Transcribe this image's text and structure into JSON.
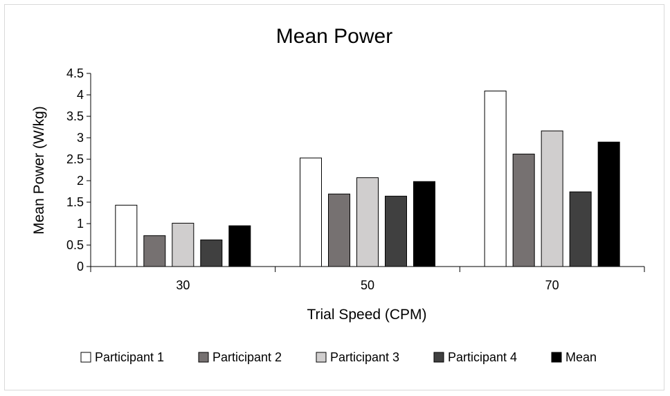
{
  "chart_data": {
    "type": "bar",
    "title": "Mean Power",
    "xlabel": "Trial Speed (CPM)",
    "ylabel": "Mean Power (W/kg)",
    "categories": [
      "30",
      "50",
      "70"
    ],
    "ylim": [
      0,
      4.5
    ],
    "yticks": [
      "0",
      "0.5",
      "1",
      "1.5",
      "2",
      "2.5",
      "3",
      "3.5",
      "4",
      "4.5"
    ],
    "grid": false,
    "legend_position": "bottom",
    "series": [
      {
        "name": "Participant 1",
        "color": "#ffffff",
        "values": [
          1.43,
          2.53,
          4.09
        ]
      },
      {
        "name": "Participant 2",
        "color": "#767171",
        "values": [
          0.72,
          1.69,
          2.62
        ]
      },
      {
        "name": "Participant 3",
        "color": "#d0cece",
        "values": [
          1.01,
          2.07,
          3.16
        ]
      },
      {
        "name": "Participant 4",
        "color": "#404040",
        "values": [
          0.62,
          1.64,
          1.74
        ]
      },
      {
        "name": "Mean",
        "color": "#000000",
        "values": [
          0.95,
          1.98,
          2.9
        ]
      }
    ]
  }
}
